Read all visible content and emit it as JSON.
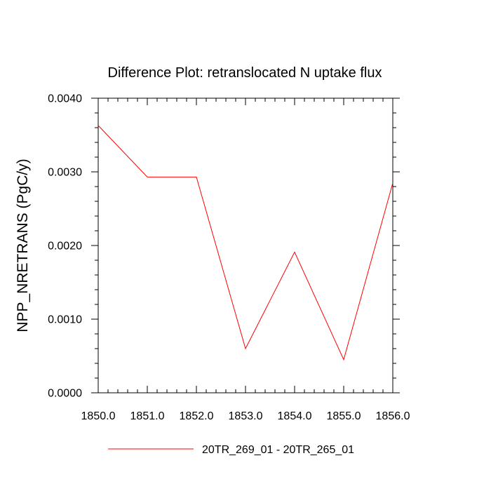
{
  "chart_data": {
    "type": "line",
    "title": "Difference Plot: retranslocated N uptake flux",
    "xlabel": "",
    "ylabel": "NPP_NRETRANS  (PgC/y)",
    "xlim": [
      1850.0,
      1856.0
    ],
    "ylim": [
      0.0,
      0.004
    ],
    "x_tick_labels": [
      "1850.0",
      "1851.0",
      "1852.0",
      "1853.0",
      "1854.0",
      "1855.0",
      "1856.0"
    ],
    "y_tick_labels": [
      "0.0000",
      "0.0010",
      "0.0020",
      "0.0030",
      "0.0040"
    ],
    "x_ticks": [
      1850.0,
      1851.0,
      1852.0,
      1853.0,
      1854.0,
      1855.0,
      1856.0
    ],
    "y_ticks": [
      0.0,
      0.001,
      0.002,
      0.003,
      0.004
    ],
    "grid": false,
    "legend_position": "bottom",
    "series": [
      {
        "name": "20TR_269_01 - 20TR_265_01",
        "color": "#ff0000",
        "x": [
          1850.0,
          1851.0,
          1852.0,
          1853.0,
          1854.0,
          1855.0,
          1856.0
        ],
        "y": [
          0.00363,
          0.00293,
          0.00293,
          0.0006,
          0.00191,
          0.00045,
          0.00285
        ]
      }
    ]
  }
}
